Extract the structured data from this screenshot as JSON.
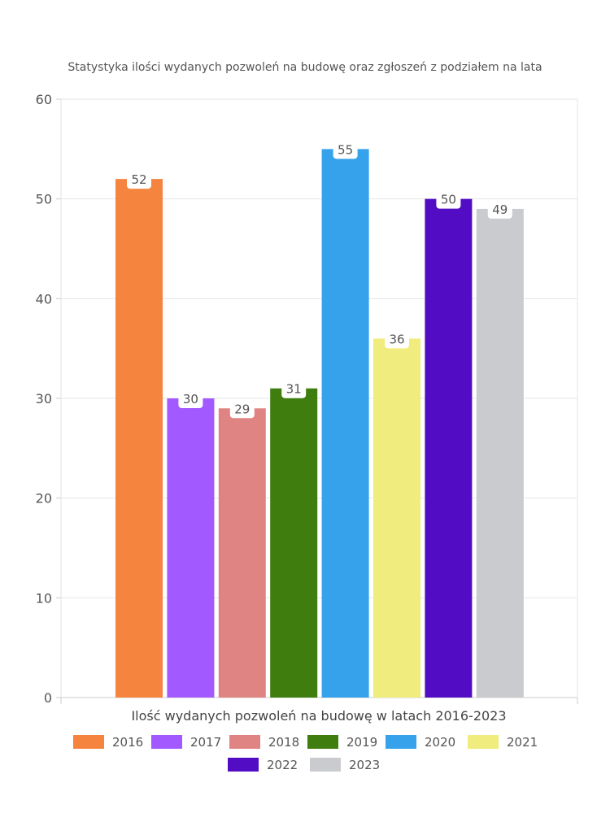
{
  "chart_data": {
    "type": "bar",
    "title": "Statystyka ilości wydanych pozwoleń na budowę oraz zgłoszeń z podziałem na lata",
    "xlabel": "Ilość wydanych pozwoleń na budowę w latach 2016-2023",
    "ylabel": "",
    "ylim": [
      0,
      60
    ],
    "yticks": [
      0,
      10,
      20,
      30,
      40,
      50,
      60
    ],
    "grid": true,
    "legend_position": "bottom",
    "series": [
      {
        "name": "2016",
        "value": 52,
        "color": "#F5843F"
      },
      {
        "name": "2017",
        "value": 30,
        "color": "#A259FF"
      },
      {
        "name": "2018",
        "value": 29,
        "color": "#E08383"
      },
      {
        "name": "2019",
        "value": 31,
        "color": "#3E7D0E"
      },
      {
        "name": "2020",
        "value": 55,
        "color": "#36A2EB"
      },
      {
        "name": "2021",
        "value": 36,
        "color": "#F0EC7D"
      },
      {
        "name": "2022",
        "value": 50,
        "color": "#520DC4"
      },
      {
        "name": "2023",
        "value": 49,
        "color": "#C9CBCF"
      }
    ]
  }
}
